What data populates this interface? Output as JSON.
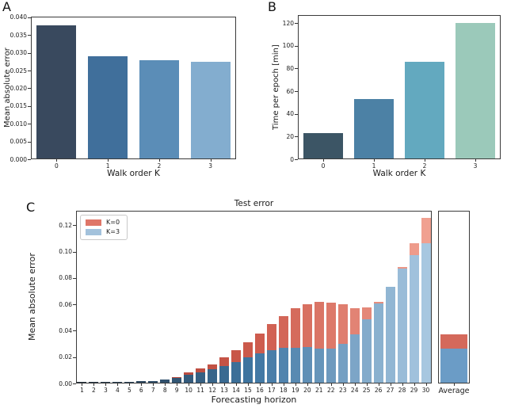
{
  "panel_labels": [
    "A",
    "B",
    "C"
  ],
  "chart_data": [
    {
      "id": "A",
      "type": "bar",
      "title": "",
      "xlabel": "Walk order K",
      "ylabel": "Mean absolute error",
      "categories": [
        "0",
        "1",
        "2",
        "3"
      ],
      "values": [
        0.0377,
        0.029,
        0.0279,
        0.0274
      ],
      "bar_colors": [
        "#39495e",
        "#406f9b",
        "#5b8db7",
        "#83adcf"
      ],
      "ylim": [
        0,
        0.0402
      ],
      "ytick_values": [
        0,
        0.005,
        0.01,
        0.015,
        0.02,
        0.025,
        0.03,
        0.035,
        0.04
      ],
      "ytick_labels": [
        "0.000",
        "0.005",
        "0.010",
        "0.015",
        "0.020",
        "0.025",
        "0.030",
        "0.035",
        "0.040"
      ],
      "grid": false,
      "legend": null
    },
    {
      "id": "B",
      "type": "bar",
      "title": "",
      "xlabel": "Walk order K",
      "ylabel": "Time per epoch [min]",
      "categories": [
        "0",
        "1",
        "2",
        "3"
      ],
      "values": [
        23,
        53,
        86,
        120
      ],
      "bar_colors": [
        "#3c5565",
        "#4c81a5",
        "#63a9bf",
        "#9bc9ba"
      ],
      "ylim": [
        0,
        127
      ],
      "ytick_values": [
        0,
        20,
        40,
        60,
        80,
        100,
        120
      ],
      "ytick_labels": [
        "0",
        "20",
        "40",
        "60",
        "80",
        "100",
        "120"
      ],
      "grid": false,
      "legend": null
    },
    {
      "id": "C",
      "type": "overlaid_bar",
      "title": "Test error",
      "xlabel": "Forecasting horizon",
      "ylabel": "Mean absolute error",
      "categories": [
        "1",
        "2",
        "3",
        "4",
        "5",
        "6",
        "7",
        "8",
        "9",
        "10",
        "11",
        "12",
        "13",
        "14",
        "15",
        "16",
        "17",
        "18",
        "19",
        "20",
        "21",
        "22",
        "23",
        "24",
        "25",
        "26",
        "27",
        "28",
        "29",
        "30"
      ],
      "series": [
        {
          "name": "K=0",
          "values": [
            0.001,
            0.0011,
            0.0013,
            0.0014,
            0.0015,
            0.0016,
            0.002,
            0.0029,
            0.0046,
            0.0086,
            0.0112,
            0.0146,
            0.0196,
            0.025,
            0.0313,
            0.0379,
            0.045,
            0.051,
            0.0568,
            0.0598,
            0.0616,
            0.0614,
            0.06,
            0.057,
            0.0575,
            0.062,
            0.073,
            0.0884,
            0.1065,
            0.1258
          ],
          "color_ramp": [
            "#9e332a",
            "#cd5a4c",
            "#f0a090"
          ],
          "legend_color": "#df7668"
        },
        {
          "name": "K=3",
          "values": [
            0.001,
            0.0011,
            0.0013,
            0.0014,
            0.0015,
            0.0016,
            0.002,
            0.0029,
            0.004,
            0.0068,
            0.0086,
            0.011,
            0.0134,
            0.016,
            0.0196,
            0.0229,
            0.0252,
            0.0268,
            0.0272,
            0.0276,
            0.0262,
            0.0266,
            0.03,
            0.037,
            0.0486,
            0.0605,
            0.0735,
            0.0872,
            0.0975,
            0.1065
          ],
          "color_ramp": [
            "#232f3b",
            "#3f76a3",
            "#a7c7e0"
          ],
          "legend_color": "#a3c2dc"
        }
      ],
      "ylim": [
        0,
        0.131
      ],
      "ytick_values": [
        0,
        0.02,
        0.04,
        0.06,
        0.08,
        0.1,
        0.12
      ],
      "ytick_labels": [
        "0.00",
        "0.02",
        "0.04",
        "0.06",
        "0.08",
        "0.10",
        "0.12"
      ],
      "legend": {
        "position": "upper-left",
        "entries": [
          "K=0",
          "K=3"
        ]
      },
      "average_panel": {
        "label": "Average",
        "values": [
          0.0375,
          0.0265
        ],
        "colors": [
          "#d4695b",
          "#6b9cc6"
        ]
      },
      "grid": false
    }
  ]
}
